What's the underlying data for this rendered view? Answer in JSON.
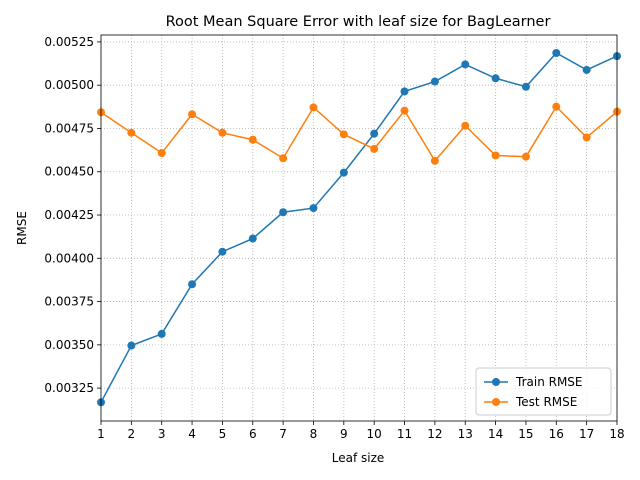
{
  "chart_data": {
    "type": "line",
    "title": "Root Mean Square Error with leaf size for BagLearner",
    "xlabel": "Leaf size",
    "ylabel": "RMSE",
    "x": [
      1,
      2,
      3,
      4,
      5,
      6,
      7,
      8,
      9,
      10,
      11,
      12,
      13,
      14,
      15,
      16,
      17,
      18
    ],
    "xlim": [
      1,
      18
    ],
    "ylim": [
      0.00306,
      0.00529
    ],
    "xticks": [
      "1",
      "2",
      "3",
      "4",
      "5",
      "6",
      "7",
      "8",
      "9",
      "10",
      "11",
      "12",
      "13",
      "14",
      "15",
      "16",
      "17",
      "18"
    ],
    "yticks": [
      0.00325,
      0.0035,
      0.00375,
      0.004,
      0.00425,
      0.0045,
      0.00475,
      0.005,
      0.00525
    ],
    "ytick_labels": [
      "0.00325",
      "0.00350",
      "0.00375",
      "0.00400",
      "0.00425",
      "0.00450",
      "0.00475",
      "0.00500",
      "0.00525"
    ],
    "grid": true,
    "legend_position": "lower-right",
    "series": [
      {
        "name": "Train RMSE",
        "color": "#1f77b4",
        "marker": "circle",
        "values": [
          0.003168,
          0.003496,
          0.003563,
          0.00385,
          0.004038,
          0.004114,
          0.004266,
          0.00429,
          0.004495,
          0.00472,
          0.004964,
          0.005021,
          0.00512,
          0.00504,
          0.004991,
          0.005186,
          0.005088,
          0.005168
        ]
      },
      {
        "name": "Test RMSE",
        "color": "#ff7f0e",
        "marker": "circle",
        "values": [
          0.004844,
          0.004725,
          0.004608,
          0.004832,
          0.004725,
          0.004685,
          0.004578,
          0.004872,
          0.004716,
          0.004632,
          0.004853,
          0.004563,
          0.004766,
          0.004594,
          0.004587,
          0.004876,
          0.004698,
          0.004847
        ]
      }
    ]
  }
}
